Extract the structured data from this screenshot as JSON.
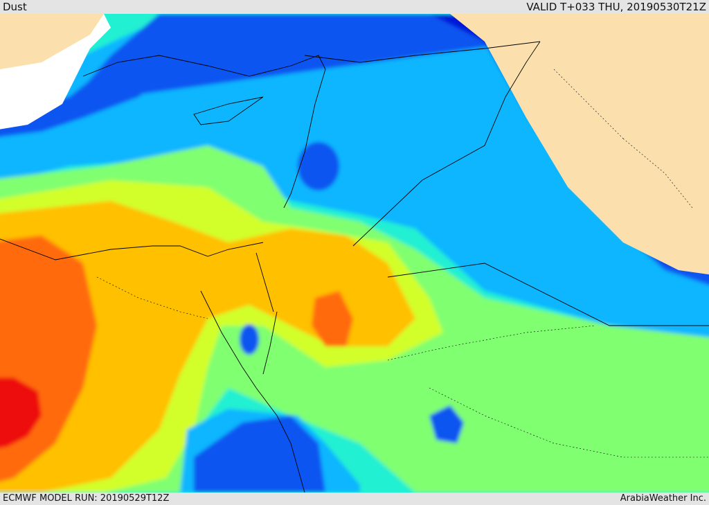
{
  "header": {
    "product": "Dust",
    "valid": "VALID T+033 THU, 20190530T21Z"
  },
  "footer": {
    "model_run": "ECMWF MODEL RUN: 20190529T12Z",
    "credit": "ArabiaWeather Inc."
  },
  "palette": {
    "land": "#fbdfac",
    "sea_white": "#ffffff",
    "lvl0": "#0018d8",
    "lvl1": "#0a55f0",
    "lvl2": "#0ab6ff",
    "lvl3": "#22f0d2",
    "lvl4": "#80ff70",
    "lvl5": "#d2ff2a",
    "lvl6": "#ffc000",
    "lvl7": "#ff6a10",
    "lvl8": "#ee1010",
    "border": "#000000"
  }
}
